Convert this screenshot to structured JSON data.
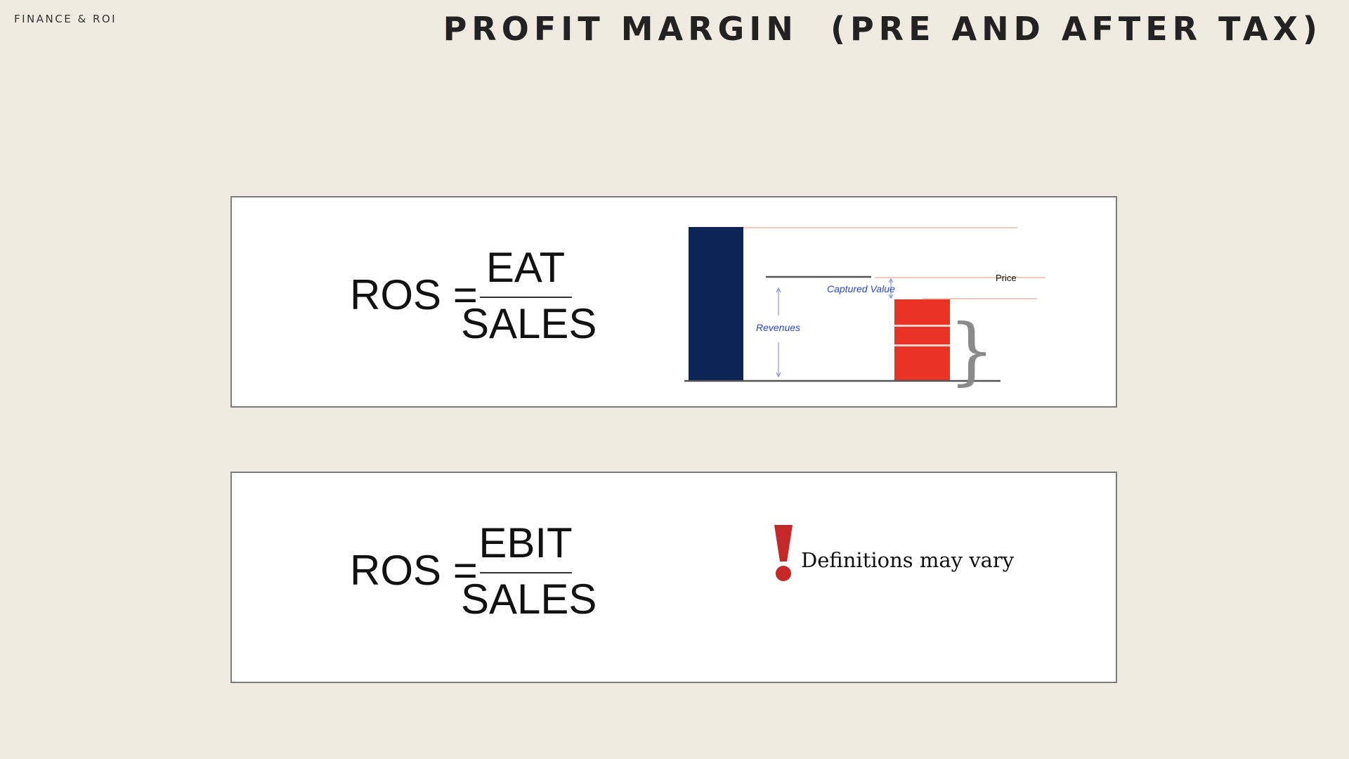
{
  "header": {
    "section_label": "FINANCE & ROI",
    "title": "PROFIT MARGIN  (PRE AND AFTER TAX)"
  },
  "cards": [
    {
      "formula": {
        "lhs": "ROS =",
        "numerator": "EAT",
        "denominator": "SALES"
      },
      "diagram": {
        "labels": {
          "price": "Price",
          "captured_value": "Captured Value",
          "revenues": "Revenues"
        },
        "colors": {
          "tall_bar": "#0c2456",
          "cost_stack": "#e83325",
          "annotation": "#2b47d4",
          "guide_line": "#f0b8a8"
        }
      }
    },
    {
      "formula": {
        "lhs": "ROS =",
        "numerator": "EBIT",
        "denominator": "SALES"
      },
      "note": {
        "icon": "exclamation-icon",
        "text": "Definitions may vary",
        "icon_color": "#c62828"
      }
    }
  ]
}
